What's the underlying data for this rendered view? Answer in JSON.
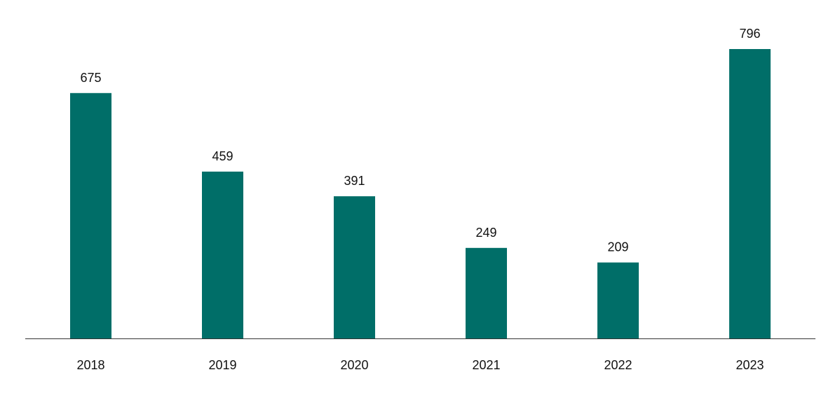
{
  "chart_data": {
    "type": "bar",
    "categories": [
      "2018",
      "2019",
      "2020",
      "2021",
      "2022",
      "2023"
    ],
    "values": [
      675,
      459,
      391,
      249,
      209,
      796
    ],
    "value_labels": [
      "675",
      "459",
      "391",
      "249",
      "209",
      "796"
    ],
    "title": "",
    "xlabel": "",
    "ylabel": "",
    "ylim": [
      0,
      860
    ],
    "grid": false,
    "legend": "none",
    "bar_color": "#006e68",
    "axis_color": "#333333"
  }
}
